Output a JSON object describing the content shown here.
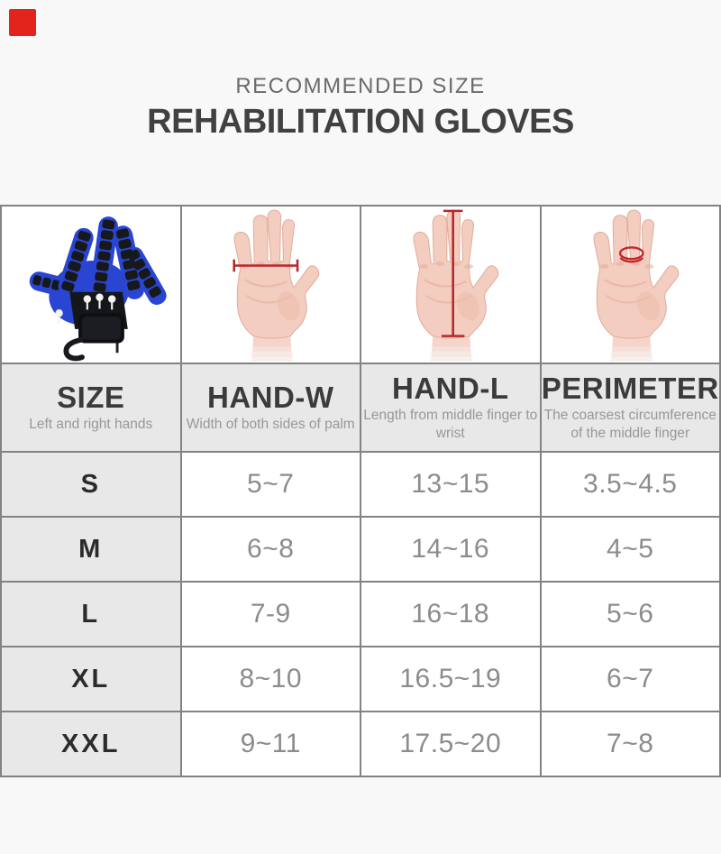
{
  "corner_marker": {
    "color": "#e2241d"
  },
  "titles": {
    "kicker": "RECOMMENDED SIZE",
    "main": "REHABILITATION GLOVES"
  },
  "table": {
    "columns": [
      {
        "label": "SIZE",
        "description": "Left and right hands"
      },
      {
        "label": "HAND-W",
        "description": "Width of both sides of palm"
      },
      {
        "label": "HAND-L",
        "description": "Length from middle finger to wrist"
      },
      {
        "label": "PERIMETER",
        "description": "The coarsest circumference of the middle finger"
      }
    ],
    "illustrations": [
      {
        "name": "rehabilitation-glove-photo"
      },
      {
        "name": "hand-width-measurement"
      },
      {
        "name": "hand-length-measurement"
      },
      {
        "name": "middle-finger-circumference"
      }
    ],
    "rows": [
      {
        "size": "S",
        "hand_w": "5~7",
        "hand_l": "13~15",
        "perimeter": "3.5~4.5"
      },
      {
        "size": "M",
        "hand_w": "6~8",
        "hand_l": "14~16",
        "perimeter": "4~5"
      },
      {
        "size": "L",
        "hand_w": "7-9",
        "hand_l": "16~18",
        "perimeter": "5~6"
      },
      {
        "size": "XL",
        "hand_w": "8~10",
        "hand_l": "16.5~19",
        "perimeter": "6~7"
      },
      {
        "size": "XXL",
        "hand_w": "9~11",
        "hand_l": "17.5~20",
        "perimeter": "7~8"
      }
    ]
  },
  "colors": {
    "accent_red": "#b5272b",
    "glove_blue": "#2945d1",
    "header_bg": "#e8e8e8",
    "value_text": "#8c8c8c",
    "skin": "#f3cdc0"
  }
}
